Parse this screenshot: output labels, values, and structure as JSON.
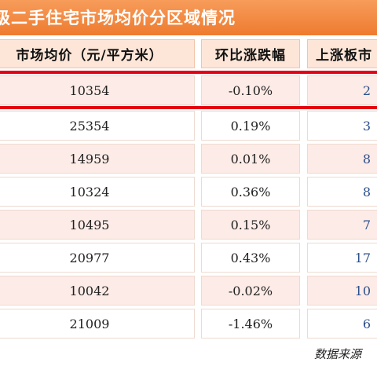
{
  "title": "级二手住宅市场均价分区域情况",
  "headers": [
    "市场均价（元/平方米）",
    "环比涨跌幅",
    "上涨板市"
  ],
  "rows": [
    {
      "price": "10354",
      "change": "-0.10%",
      "rise": "2"
    },
    {
      "price": "25354",
      "change": "0.19%",
      "rise": "3"
    },
    {
      "price": "14959",
      "change": "0.01%",
      "rise": "8"
    },
    {
      "price": "10324",
      "change": "0.36%",
      "rise": "8"
    },
    {
      "price": "10495",
      "change": "0.15%",
      "rise": "7"
    },
    {
      "price": "20977",
      "change": "0.43%",
      "rise": "17"
    },
    {
      "price": "10042",
      "change": "-0.02%",
      "rise": "10"
    },
    {
      "price": "21009",
      "change": "-1.46%",
      "rise": "6"
    }
  ],
  "source": "数据来源",
  "colors": {
    "title_bar": "#ee7b2f",
    "header_bg": "#fde6d8",
    "highlight_line": "#e60012",
    "row_pink": "#fcebe6",
    "rise_text": "#2c4f8c"
  }
}
